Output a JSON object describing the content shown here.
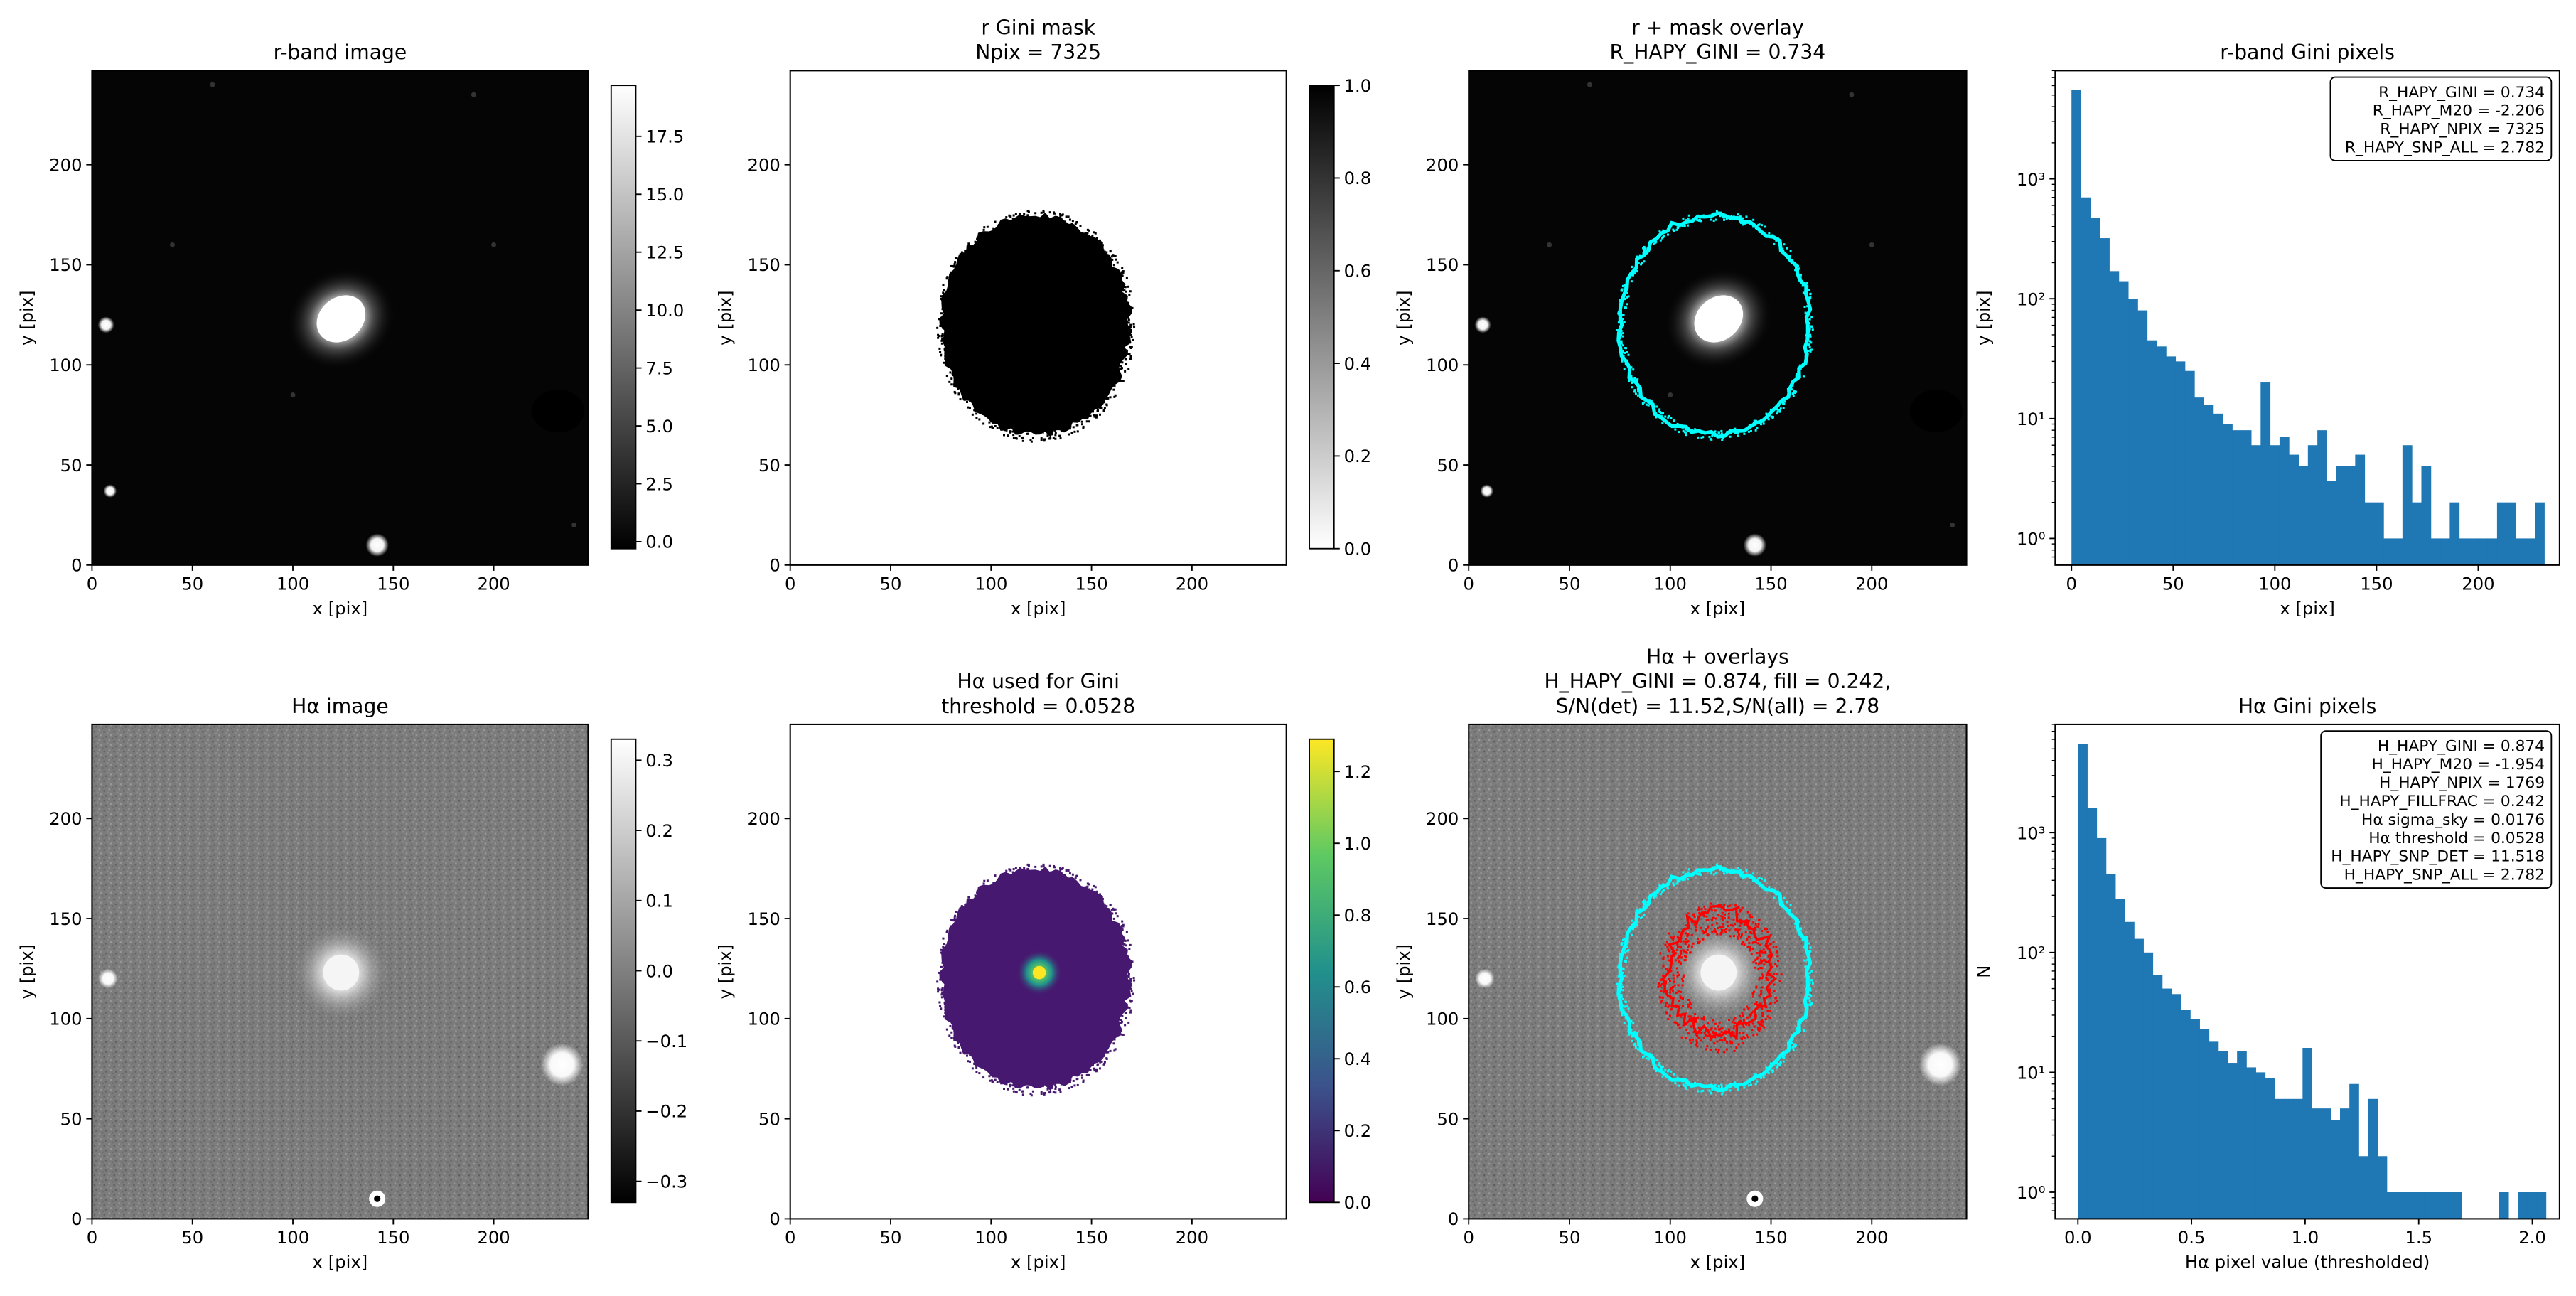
{
  "axis_labels": {
    "x_pix": "x [pix]",
    "y_pix": "y [pix]"
  },
  "chart_data": [
    {
      "type": "heatmap",
      "title": "r-band image",
      "xlabel": "x [pix]",
      "ylabel": "y [pix]",
      "xlim": [
        0,
        247
      ],
      "ylim": [
        0,
        247
      ],
      "xticks": [
        0,
        50,
        100,
        150,
        200
      ],
      "yticks": [
        0,
        50,
        100,
        150,
        200
      ],
      "colormap": "gray",
      "colorbar": {
        "ticks": [
          0.0,
          2.5,
          5.0,
          7.5,
          10.0,
          12.5,
          15.0,
          17.5
        ],
        "tick_labels": [
          "0.0",
          "2.5",
          "5.0",
          "7.5",
          "10.0",
          "12.5",
          "15.0",
          "17.5"
        ],
        "range": [
          -0.3,
          19.7
        ]
      },
      "sources": [
        {
          "label": "galaxy",
          "x": 124,
          "y": 123
        },
        {
          "label": "star",
          "x": 7,
          "y": 120
        },
        {
          "label": "star",
          "x": 9,
          "y": 37
        },
        {
          "label": "star",
          "x": 142,
          "y": 10
        },
        {
          "label": "masked region",
          "x": 232,
          "y": 77
        }
      ]
    },
    {
      "type": "heatmap",
      "title": "r Gini mask\nNpix = 7325",
      "xlabel": "x [pix]",
      "ylabel": "y [pix]",
      "xlim": [
        0,
        247
      ],
      "ylim": [
        0,
        247
      ],
      "xticks": [
        0,
        50,
        100,
        150,
        200
      ],
      "yticks": [
        0,
        50,
        100,
        150,
        200
      ],
      "colormap": "gray_r",
      "colorbar": {
        "ticks": [
          0.0,
          0.2,
          0.4,
          0.6,
          0.8,
          1.0
        ],
        "tick_labels": [
          "0.0",
          "0.2",
          "0.4",
          "0.6",
          "0.8",
          "1.0"
        ],
        "range": [
          0,
          1
        ]
      },
      "mask_region": {
        "center_x": 122,
        "center_y": 120,
        "half_width": 47,
        "half_height": 55,
        "npix": 7325
      }
    },
    {
      "type": "heatmap",
      "title": "r + mask overlay\nR_HAPY_GINI = 0.734",
      "xlabel": "x [pix]",
      "ylabel": "y [pix]",
      "xlim": [
        0,
        247
      ],
      "ylim": [
        0,
        247
      ],
      "xticks": [
        0,
        50,
        100,
        150,
        200
      ],
      "yticks": [
        0,
        50,
        100,
        150,
        200
      ],
      "colormap": "gray",
      "overlays": [
        {
          "name": "r Gini mask boundary",
          "color": "#00ffff"
        }
      ]
    },
    {
      "type": "bar",
      "title": "r-band Gini pixels",
      "xlabel": "x [pix]",
      "ylabel": "y [pix]",
      "yscale": "log",
      "xlim": [
        -8,
        240
      ],
      "ylim": [
        0.6,
        8000
      ],
      "xticks": [
        0,
        50,
        100,
        150,
        200
      ],
      "yticks": [
        1,
        10,
        100,
        1000
      ],
      "ytick_labels": [
        "10⁰",
        "10¹",
        "10²",
        "10³"
      ],
      "bin_start": 0,
      "bin_width": 4.65,
      "values": [
        5500,
        700,
        470,
        320,
        170,
        140,
        100,
        80,
        45,
        40,
        33,
        30,
        25,
        15,
        13,
        11,
        9,
        8,
        8,
        6,
        20,
        6,
        7,
        5,
        4,
        6,
        8,
        3,
        4,
        4,
        5,
        2,
        2,
        1,
        1,
        6,
        2,
        4,
        1,
        1,
        2,
        1,
        1,
        1,
        1,
        2,
        2,
        1,
        1,
        2
      ],
      "color": "#1f77b4",
      "annotation": [
        "R_HAPY_GINI = 0.734",
        "R_HAPY_M20 = -2.206",
        "R_HAPY_NPIX = 7325",
        "R_HAPY_SNP_ALL = 2.782"
      ]
    },
    {
      "type": "heatmap",
      "title": "Hα image",
      "xlabel": "x [pix]",
      "ylabel": "y [pix]",
      "xlim": [
        0,
        247
      ],
      "ylim": [
        0,
        247
      ],
      "xticks": [
        0,
        50,
        100,
        150,
        200
      ],
      "yticks": [
        0,
        50,
        100,
        150,
        200
      ],
      "colormap": "gray",
      "colorbar": {
        "ticks": [
          -0.3,
          -0.2,
          -0.1,
          0.0,
          0.1,
          0.2,
          0.3
        ],
        "tick_labels": [
          "−0.3",
          "−0.2",
          "−0.1",
          "0.0",
          "0.1",
          "0.2",
          "0.3"
        ],
        "range": [
          -0.33,
          0.33
        ]
      },
      "sources": [
        {
          "label": "galaxy",
          "x": 124,
          "y": 123
        },
        {
          "label": "star",
          "x": 8,
          "y": 120
        },
        {
          "label": "star",
          "x": 234,
          "y": 77
        },
        {
          "label": "star",
          "x": 142,
          "y": 10
        }
      ]
    },
    {
      "type": "heatmap",
      "title": "Hα used for Gini\nthreshold = 0.0528",
      "xlabel": "x [pix]",
      "ylabel": "y [pix]",
      "xlim": [
        0,
        247
      ],
      "ylim": [
        0,
        247
      ],
      "xticks": [
        0,
        50,
        100,
        150,
        200
      ],
      "yticks": [
        0,
        50,
        100,
        150,
        200
      ],
      "colormap": "viridis",
      "colorbar": {
        "ticks": [
          0.0,
          0.2,
          0.4,
          0.6,
          0.8,
          1.0,
          1.2
        ],
        "tick_labels": [
          "0.0",
          "0.2",
          "0.4",
          "0.6",
          "0.8",
          "1.0",
          "1.2"
        ],
        "range": [
          0,
          1.29
        ]
      },
      "mask_region": {
        "center_x": 122,
        "center_y": 120,
        "half_width": 47,
        "half_height": 55
      },
      "peak": {
        "x": 124,
        "y": 123,
        "value": 1.29
      }
    },
    {
      "type": "heatmap",
      "title": "Hα + overlays\nH_HAPY_GINI = 0.874, fill = 0.242,\nS/N(det) = 11.52,S/N(all) = 2.78",
      "xlabel": "x [pix]",
      "ylabel": "y [pix]",
      "xlim": [
        0,
        247
      ],
      "ylim": [
        0,
        247
      ],
      "xticks": [
        0,
        50,
        100,
        150,
        200
      ],
      "yticks": [
        0,
        50,
        100,
        150,
        200
      ],
      "colormap": "gray",
      "overlays": [
        {
          "name": "r Gini mask boundary",
          "color": "#00ffff"
        },
        {
          "name": "Hα detection boundary",
          "color": "#ff0000"
        }
      ]
    },
    {
      "type": "bar",
      "title": "Hα Gini pixels",
      "xlabel": "Hα pixel value (thresholded)",
      "ylabel": "N",
      "yscale": "log",
      "xlim": [
        -0.1,
        2.12
      ],
      "ylim": [
        0.6,
        8000
      ],
      "xticks": [
        0.0,
        0.5,
        1.0,
        1.5,
        2.0
      ],
      "xtick_labels": [
        "0.0",
        "0.5",
        "1.0",
        "1.5",
        "2.0"
      ],
      "yticks": [
        1,
        10,
        100,
        1000
      ],
      "ytick_labels": [
        "10⁰",
        "10¹",
        "10²",
        "10³"
      ],
      "bin_start": 0,
      "bin_width": 0.0412,
      "values": [
        5500,
        1600,
        900,
        450,
        280,
        180,
        130,
        100,
        65,
        50,
        45,
        33,
        28,
        23,
        18,
        15,
        12,
        15,
        11,
        10,
        9,
        6,
        6,
        6,
        16,
        5,
        5,
        4,
        5,
        8,
        2,
        6,
        2,
        1,
        1,
        1,
        1,
        1,
        1,
        1,
        1,
        0,
        0,
        0,
        0,
        1,
        0,
        1,
        1,
        1
      ],
      "color": "#1f77b4",
      "annotation": [
        "H_HAPY_GINI = 0.874",
        "H_HAPY_M20 = -1.954",
        "H_HAPY_NPIX = 1769",
        "H_HAPY_FILLFRAC = 0.242",
        "Hα sigma_sky = 0.0176",
        "Hα threshold = 0.0528",
        "H_HAPY_SNP_DET = 11.518",
        "H_HAPY_SNP_ALL = 2.782"
      ]
    }
  ]
}
